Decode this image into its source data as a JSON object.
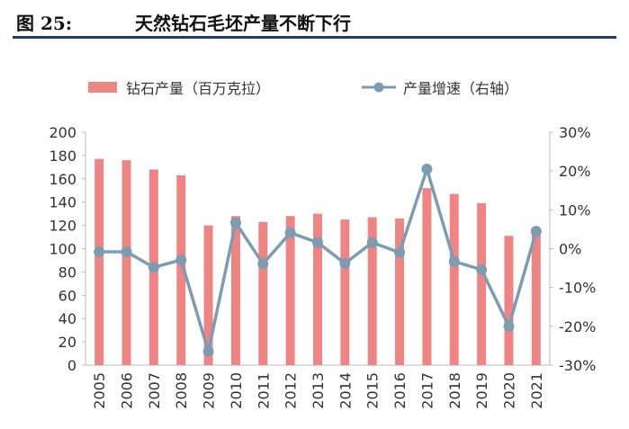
{
  "figure": {
    "label": "图 25:",
    "title": "天然钻石毛坯产量不断下行"
  },
  "colors": {
    "bar": "#ee8585",
    "line": "#7e9cb1",
    "axis": "#bbbbbb",
    "header_rule": "#1f3d66"
  },
  "chart_data": {
    "type": "bar",
    "categories": [
      "2005",
      "2006",
      "2007",
      "2008",
      "2009",
      "2010",
      "2011",
      "2012",
      "2013",
      "2014",
      "2015",
      "2016",
      "2017",
      "2018",
      "2019",
      "2020",
      "2021"
    ],
    "series": [
      {
        "name": "钻石产量（百万克拉）",
        "type": "bar",
        "axis": "left",
        "values": [
          177,
          176,
          168,
          163,
          120,
          128,
          123,
          128,
          130,
          125,
          127,
          126,
          152,
          147,
          139,
          111,
          117
        ]
      },
      {
        "name": "产量增速（右轴）",
        "type": "line",
        "axis": "right",
        "values": [
          -0.8,
          -0.8,
          -4.8,
          -2.9,
          -26.5,
          6.7,
          -3.9,
          4.1,
          1.6,
          -3.8,
          1.6,
          -1.0,
          20.5,
          -3.3,
          -5.4,
          -20.0,
          4.5
        ]
      }
    ],
    "y_left": {
      "ylim": [
        0,
        200
      ],
      "ticks": [
        "0",
        "20",
        "40",
        "60",
        "80",
        "100",
        "120",
        "140",
        "160",
        "180",
        "200"
      ]
    },
    "y_right": {
      "ylim": [
        -30,
        30
      ],
      "ticks": [
        "-30%",
        "-20%",
        "-10%",
        "0%",
        "10%",
        "20%",
        "30%"
      ]
    },
    "legend": "top",
    "grid": false
  }
}
